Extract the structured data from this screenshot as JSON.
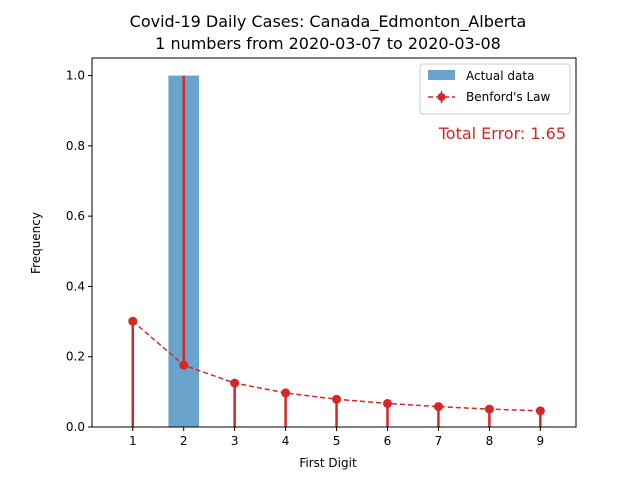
{
  "chart_data": {
    "type": "bar",
    "title": "Covid-19 Daily Cases: Canada_Edmonton_Alberta",
    "subtitle": "1 numbers from 2020-03-07 to 2020-03-08",
    "xlabel": "First Digit",
    "ylabel": "Frequency",
    "categories": [
      "1",
      "2",
      "3",
      "4",
      "5",
      "6",
      "7",
      "8",
      "9"
    ],
    "x": [
      1,
      2,
      3,
      4,
      5,
      6,
      7,
      8,
      9
    ],
    "xlim": [
      0.2,
      9.7
    ],
    "ylim": [
      0,
      1.05
    ],
    "yticks": [
      0.0,
      0.2,
      0.4,
      0.6,
      0.8,
      1.0
    ],
    "ytick_labels": [
      "0.0",
      "0.2",
      "0.4",
      "0.6",
      "0.8",
      "1.0"
    ],
    "grid": false,
    "legend_position": "top-right",
    "series": [
      {
        "name": "Actual data",
        "type": "bar",
        "color": "#6aa3cb",
        "values": [
          0,
          1.0,
          0,
          0,
          0,
          0,
          0,
          0,
          0
        ]
      },
      {
        "name": "Benford's Law",
        "type": "line",
        "style": "dashed with circle markers and vertical error lines",
        "color": "#d62728",
        "values": [
          0.301,
          0.176,
          0.125,
          0.097,
          0.079,
          0.067,
          0.058,
          0.051,
          0.046
        ],
        "error_lines_to": [
          0,
          1.0,
          0,
          0,
          0,
          0,
          0,
          0,
          0
        ]
      }
    ],
    "annotation": {
      "text": "Total Error: 1.65",
      "color": "#d62728",
      "position": "top-right"
    }
  }
}
